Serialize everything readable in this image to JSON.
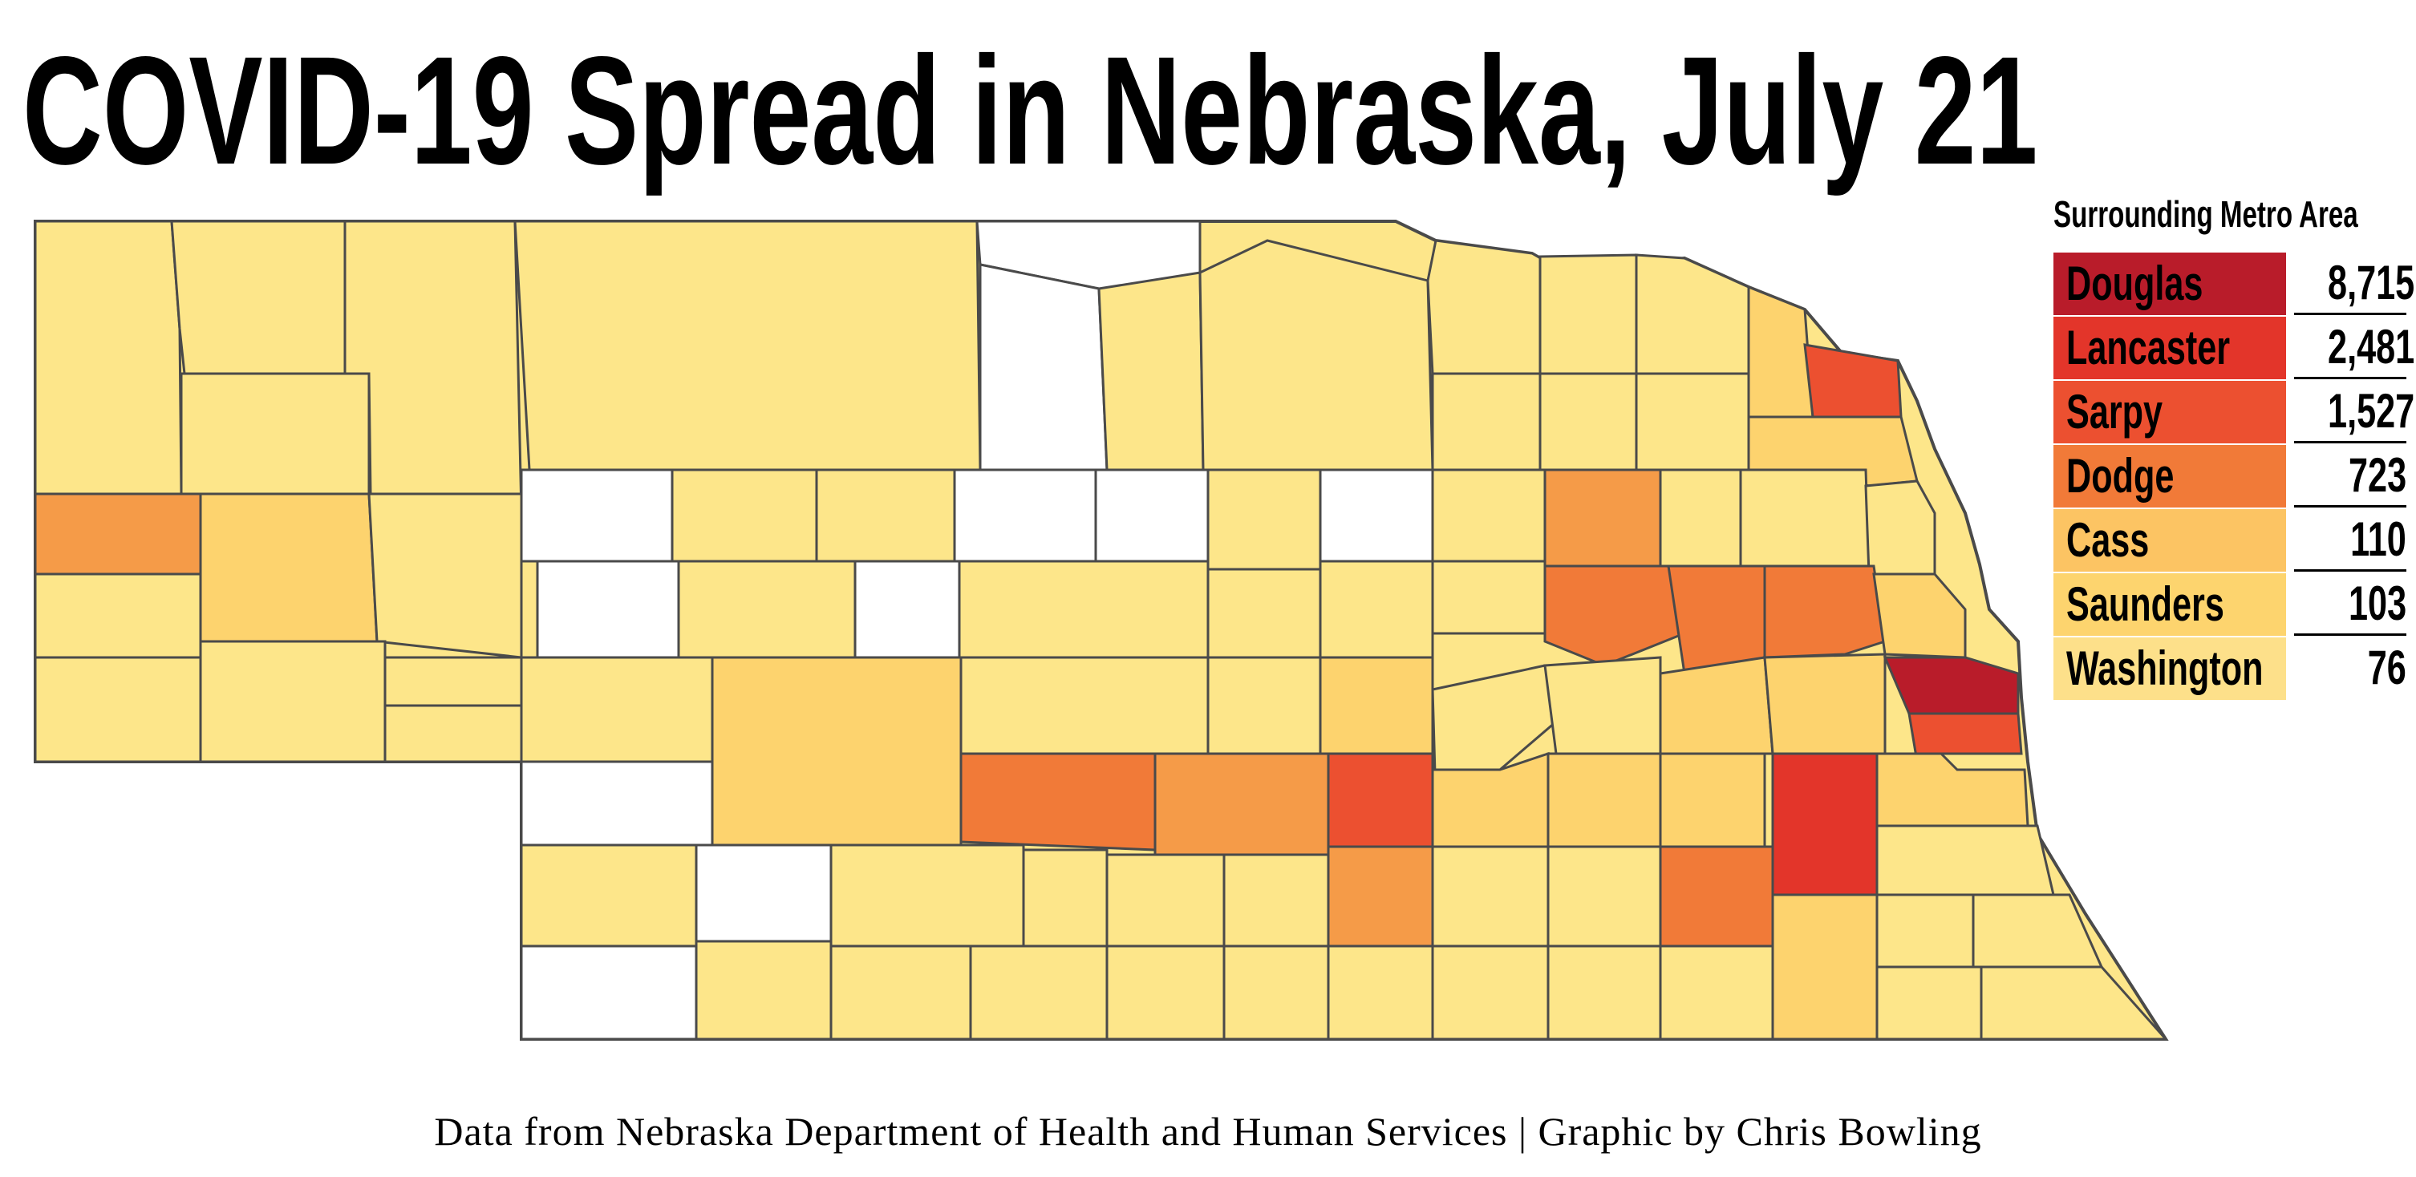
{
  "title": "COVID-19 Spread in Nebraska, July 21",
  "legend": {
    "title": "Surrounding Metro Area",
    "items": [
      {
        "county": "Douglas",
        "cases": "8,715",
        "color": "#b91c2a"
      },
      {
        "county": "Lancaster",
        "cases": "2,481",
        "color": "#e3352a"
      },
      {
        "county": "Sarpy",
        "cases": "1,527",
        "color": "#ec5030"
      },
      {
        "county": "Dodge",
        "cases": "723",
        "color": "#f17a38"
      },
      {
        "county": "Cass",
        "cases": "110",
        "color": "#fcc463"
      },
      {
        "county": "Saunders",
        "cases": "103",
        "color": "#fdd46e"
      },
      {
        "county": "Washington",
        "cases": "76",
        "color": "#fde08a"
      }
    ]
  },
  "palette": {
    "none": "#ffffff",
    "pale": "#fde68a",
    "light": "#fdd36e",
    "medium": "#f59b48",
    "orange": "#f17a38",
    "redorange": "#ec5030",
    "red": "#e3352a",
    "darkred": "#b91c2a",
    "border": "#4a4a4a"
  },
  "source": "Data from Nebraska Department of Health and Human Services | Graphic by Chris Bowling"
}
